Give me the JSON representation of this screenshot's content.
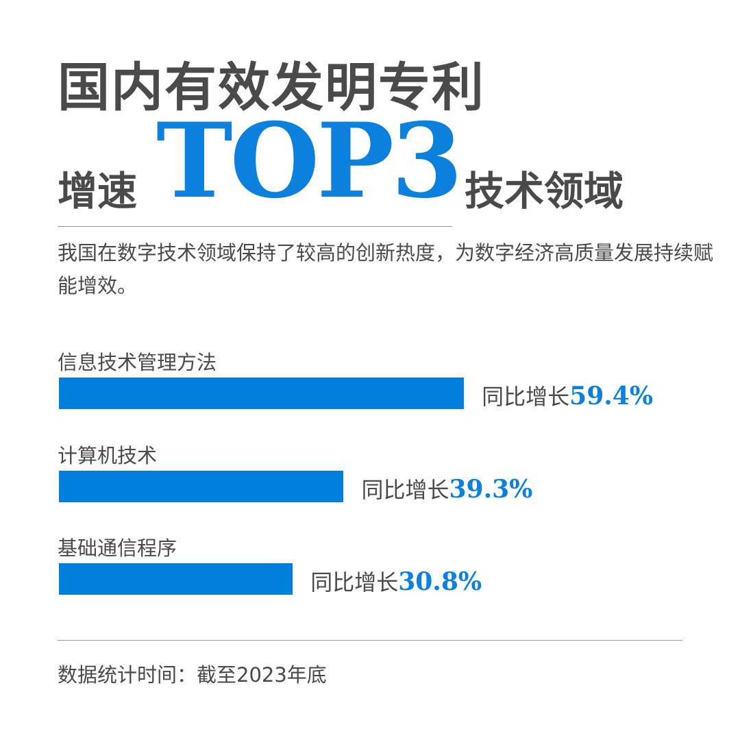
{
  "title_line1": "国内有效发明专利",
  "title_line2_left": "增速",
  "title_highlight": "TOP3",
  "title_line2_right": "技术领域",
  "description": "我国在数字技术领域保持了较高的创新热度，为数字经济高质量发展持续赋能增效。",
  "footnote": "数据统计时间：截至2023年底",
  "colors": {
    "bar": "#0080dd",
    "highlight": "#0b80dc",
    "text": "#4a4a4a"
  },
  "chart_data": {
    "type": "bar",
    "orientation": "horizontal",
    "categories": [
      "信息技术管理方法",
      "计算机技术",
      "基础通信程序"
    ],
    "value_prefix": "同比增长",
    "values": [
      59.4,
      39.3,
      30.8
    ],
    "value_labels": [
      "59.4%",
      "39.3%",
      "30.8%"
    ],
    "unit": "%"
  }
}
